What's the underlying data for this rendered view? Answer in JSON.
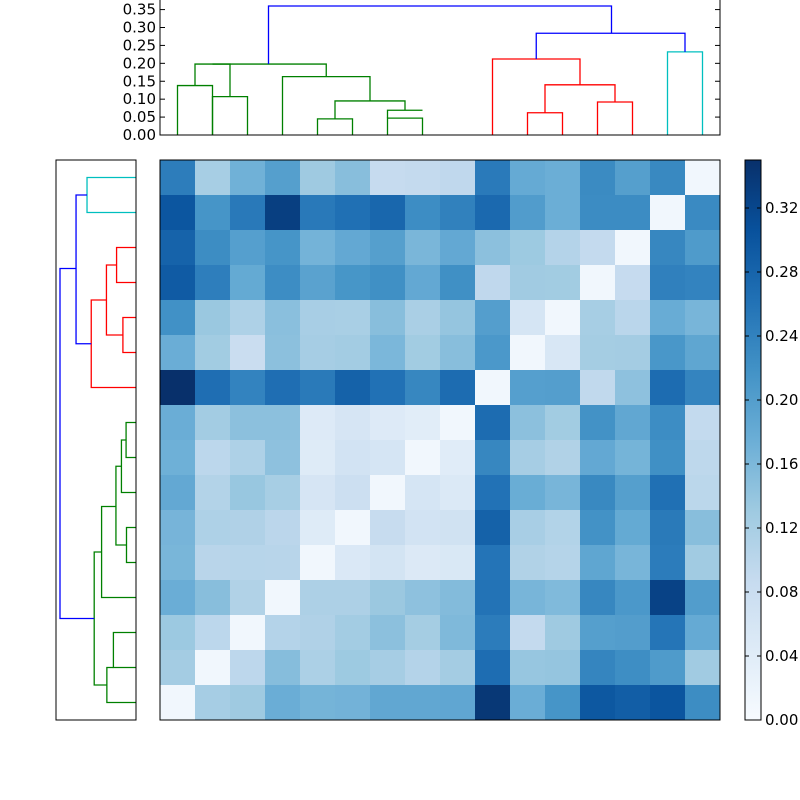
{
  "chart_data": {
    "type": "heatmap",
    "title": "",
    "description_note": "",
    "colormap": "Blues",
    "matrix": [
      [
        0.246,
        0.121,
        0.171,
        0.199,
        0.13,
        0.15,
        0.088,
        0.09,
        0.094,
        0.25,
        0.181,
        0.175,
        0.228,
        0.199,
        0.231,
        0.01
      ],
      [
        0.3,
        0.214,
        0.252,
        0.33,
        0.252,
        0.264,
        0.276,
        0.225,
        0.241,
        0.273,
        0.203,
        0.175,
        0.227,
        0.227,
        0.01,
        0.229
      ],
      [
        0.281,
        0.226,
        0.198,
        0.214,
        0.167,
        0.184,
        0.199,
        0.162,
        0.184,
        0.147,
        0.132,
        0.107,
        0.09,
        0.01,
        0.233,
        0.205
      ],
      [
        0.293,
        0.245,
        0.182,
        0.225,
        0.193,
        0.213,
        0.221,
        0.184,
        0.221,
        0.094,
        0.128,
        0.127,
        0.01,
        0.087,
        0.243,
        0.238
      ],
      [
        0.22,
        0.135,
        0.114,
        0.148,
        0.12,
        0.119,
        0.15,
        0.118,
        0.139,
        0.2,
        0.06,
        0.01,
        0.121,
        0.101,
        0.178,
        0.164
      ],
      [
        0.176,
        0.127,
        0.081,
        0.147,
        0.123,
        0.126,
        0.161,
        0.127,
        0.15,
        0.209,
        0.01,
        0.054,
        0.124,
        0.125,
        0.211,
        0.188
      ],
      [
        0.35,
        0.266,
        0.238,
        0.266,
        0.251,
        0.283,
        0.263,
        0.233,
        0.27,
        0.01,
        0.198,
        0.2,
        0.093,
        0.145,
        0.27,
        0.237
      ],
      [
        0.176,
        0.126,
        0.147,
        0.147,
        0.046,
        0.059,
        0.046,
        0.038,
        0.01,
        0.269,
        0.147,
        0.127,
        0.218,
        0.186,
        0.225,
        0.091
      ],
      [
        0.172,
        0.098,
        0.114,
        0.145,
        0.043,
        0.065,
        0.06,
        0.01,
        0.04,
        0.233,
        0.123,
        0.111,
        0.184,
        0.166,
        0.221,
        0.096
      ],
      [
        0.184,
        0.108,
        0.136,
        0.121,
        0.059,
        0.076,
        0.01,
        0.061,
        0.05,
        0.261,
        0.177,
        0.164,
        0.231,
        0.199,
        0.264,
        0.099
      ],
      [
        0.165,
        0.114,
        0.112,
        0.1,
        0.043,
        0.01,
        0.086,
        0.065,
        0.069,
        0.283,
        0.12,
        0.109,
        0.218,
        0.182,
        0.251,
        0.15
      ],
      [
        0.163,
        0.102,
        0.104,
        0.103,
        0.01,
        0.051,
        0.063,
        0.048,
        0.053,
        0.258,
        0.111,
        0.106,
        0.188,
        0.164,
        0.248,
        0.128
      ],
      [
        0.176,
        0.15,
        0.111,
        0.01,
        0.115,
        0.115,
        0.134,
        0.145,
        0.154,
        0.26,
        0.164,
        0.157,
        0.233,
        0.209,
        0.326,
        0.202
      ],
      [
        0.133,
        0.098,
        0.01,
        0.107,
        0.112,
        0.126,
        0.147,
        0.124,
        0.158,
        0.248,
        0.09,
        0.13,
        0.199,
        0.201,
        0.257,
        0.181
      ],
      [
        0.125,
        0.01,
        0.097,
        0.152,
        0.116,
        0.132,
        0.123,
        0.107,
        0.125,
        0.268,
        0.137,
        0.139,
        0.236,
        0.224,
        0.205,
        0.128
      ],
      [
        0.01,
        0.123,
        0.13,
        0.176,
        0.166,
        0.168,
        0.186,
        0.186,
        0.187,
        0.34,
        0.176,
        0.214,
        0.297,
        0.288,
        0.301,
        0.226
      ]
    ],
    "colorbar": {
      "min": 0.0,
      "max": 0.35,
      "ticks": [
        0.0,
        0.04,
        0.08,
        0.12,
        0.16,
        0.2,
        0.24,
        0.28,
        0.32
      ],
      "tick_labels": [
        "0.00",
        "0.04",
        "0.08",
        "0.12",
        "0.16",
        "0.20",
        "0.24",
        "0.28",
        "0.32"
      ]
    },
    "top_dendrogram": {
      "orientation": "top",
      "leaf_count": 16,
      "ylim": [
        0,
        0.36
      ],
      "ticks": [
        0.0,
        0.05,
        0.1,
        0.15,
        0.2,
        0.25,
        0.3,
        0.35
      ],
      "tick_labels": [
        "0.00",
        "0.05",
        "0.10",
        "0.15",
        "0.20",
        "0.25",
        "0.30",
        "0.35"
      ],
      "links": [
        {
          "color": "green",
          "x": [
            0,
            0,
            1,
            1
          ],
          "y": [
            0,
            0.138,
            0.138,
            0
          ]
        },
        {
          "color": "green",
          "x": [
            1,
            1,
            2,
            2
          ],
          "y": [
            0,
            0.107,
            0.107,
            0
          ]
        },
        {
          "color": "green",
          "x": [
            0.5,
            0.5,
            1.5,
            1.5
          ],
          "y": [
            0.138,
            0.198,
            0.198,
            0.107
          ]
        },
        {
          "color": "green",
          "x": [
            4,
            4,
            5,
            5
          ],
          "y": [
            0,
            0.045,
            0.045,
            0
          ]
        },
        {
          "color": "green",
          "x": [
            6,
            6,
            7,
            7
          ],
          "y": [
            0,
            0.047,
            0.047,
            0
          ]
        },
        {
          "color": "green",
          "x": [
            6,
            6,
            7,
            7
          ],
          "y": [
            0.047,
            0.069,
            0.069,
            0.069
          ]
        },
        {
          "color": "green",
          "x": [
            4.5,
            4.5,
            6.5,
            6.5
          ],
          "y": [
            0.045,
            0.095,
            0.095,
            0.069
          ]
        },
        {
          "color": "green",
          "x": [
            3,
            3,
            5.5,
            5.5
          ],
          "y": [
            0,
            0.163,
            0.163,
            0.095
          ]
        },
        {
          "color": "green",
          "x": [
            1,
            1,
            4.25,
            4.25
          ],
          "y": [
            0.198,
            0.198,
            0.198,
            0.163
          ]
        },
        {
          "color": "red",
          "x": [
            10,
            10,
            11,
            11
          ],
          "y": [
            0,
            0.062,
            0.062,
            0
          ]
        },
        {
          "color": "red",
          "x": [
            12,
            12,
            13,
            13
          ],
          "y": [
            0,
            0.092,
            0.092,
            0
          ]
        },
        {
          "color": "red",
          "x": [
            10.5,
            10.5,
            12.5,
            12.5
          ],
          "y": [
            0.062,
            0.14,
            0.14,
            0.092
          ]
        },
        {
          "color": "red",
          "x": [
            9,
            9,
            11.5,
            11.5
          ],
          "y": [
            0,
            0.212,
            0.212,
            0.14
          ]
        },
        {
          "color": "cyan",
          "x": [
            14,
            14,
            15,
            15
          ],
          "y": [
            0,
            0.232,
            0.232,
            0
          ]
        },
        {
          "color": "blue",
          "x": [
            10.25,
            10.25,
            14.5,
            14.5
          ],
          "y": [
            0.212,
            0.284,
            0.284,
            0.232
          ]
        },
        {
          "color": "blue",
          "x": [
            2.6,
            2.6,
            12.4,
            12.4
          ],
          "y": [
            0.198,
            0.36,
            0.36,
            0.284
          ]
        }
      ]
    },
    "left_dendrogram": {
      "orientation": "left",
      "leaf_count": 16,
      "links": [
        {
          "color": "cyan",
          "y": [
            0,
            0,
            1,
            1
          ],
          "x": [
            0,
            0.232,
            0.232,
            0
          ]
        },
        {
          "color": "red",
          "y": [
            2,
            2,
            3,
            3
          ],
          "x": [
            0,
            0.092,
            0.092,
            0
          ]
        },
        {
          "color": "red",
          "y": [
            4,
            4,
            5,
            5
          ],
          "x": [
            0,
            0.062,
            0.062,
            0
          ]
        },
        {
          "color": "red",
          "y": [
            2.5,
            2.5,
            4.5,
            4.5
          ],
          "x": [
            0.092,
            0.14,
            0.14,
            0.062
          ]
        },
        {
          "color": "red",
          "y": [
            3.5,
            3.5,
            6,
            6
          ],
          "x": [
            0.14,
            0.212,
            0.212,
            0
          ]
        },
        {
          "color": "blue",
          "y": [
            0.5,
            0.5,
            4.75,
            4.75
          ],
          "x": [
            0.232,
            0.284,
            0.284,
            0.212
          ]
        },
        {
          "color": "green",
          "y": [
            7,
            7,
            8,
            8
          ],
          "x": [
            0,
            0.047,
            0.047,
            0
          ]
        },
        {
          "color": "green",
          "y": [
            7.5,
            7.5,
            9,
            9
          ],
          "x": [
            0.047,
            0.069,
            0.069,
            0
          ]
        },
        {
          "color": "green",
          "y": [
            10,
            10,
            11,
            11
          ],
          "x": [
            0,
            0.045,
            0.045,
            0
          ]
        },
        {
          "color": "green",
          "y": [
            8.25,
            8.25,
            10.5,
            10.5
          ],
          "x": [
            0.069,
            0.095,
            0.095,
            0.045
          ]
        },
        {
          "color": "green",
          "y": [
            9.4,
            9.4,
            12,
            12
          ],
          "x": [
            0.095,
            0.163,
            0.163,
            0
          ]
        },
        {
          "color": "green",
          "y": [
            13,
            13,
            14,
            14
          ],
          "x": [
            0,
            0.107,
            0.107,
            0
          ]
        },
        {
          "color": "green",
          "y": [
            14,
            14,
            15,
            15
          ],
          "x": [
            0.107,
            0.138,
            0.138,
            0
          ]
        },
        {
          "color": "green",
          "y": [
            10.7,
            10.7,
            14.5,
            14.5
          ],
          "x": [
            0.163,
            0.198,
            0.198,
            0.138
          ]
        },
        {
          "color": "blue",
          "y": [
            2.6,
            2.6,
            12.6,
            12.6
          ],
          "x": [
            0.284,
            0.36,
            0.36,
            0.198
          ]
        }
      ]
    }
  }
}
